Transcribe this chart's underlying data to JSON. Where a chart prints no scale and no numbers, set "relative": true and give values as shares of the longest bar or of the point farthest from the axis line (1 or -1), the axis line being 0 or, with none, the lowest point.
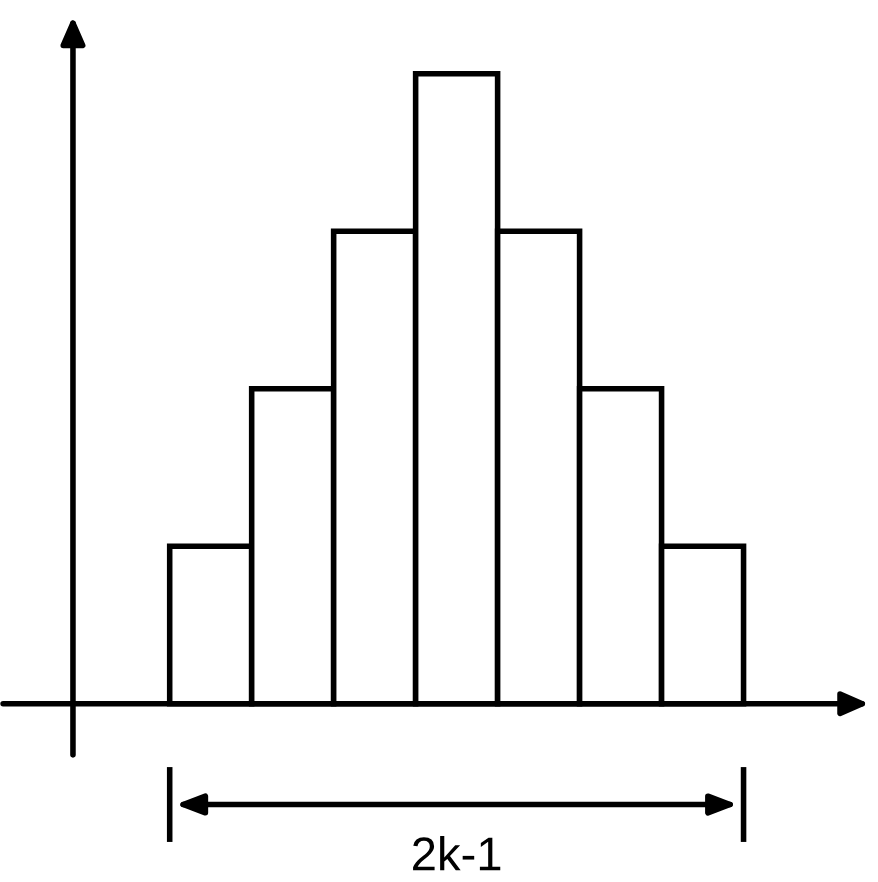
{
  "chart_data": {
    "type": "bar",
    "relative": true,
    "categories": [
      null,
      null,
      null,
      null,
      null,
      null,
      null
    ],
    "values": [
      0.25,
      0.5,
      0.75,
      1,
      0.75,
      0.5,
      0.25
    ],
    "color": "#ffffff",
    "annotations": [
      "2k-1"
    ]
  }
}
